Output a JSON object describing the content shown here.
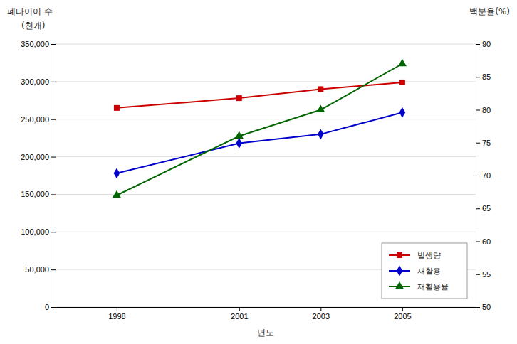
{
  "chart_data": {
    "type": "line",
    "x_label": "년도",
    "y_label": [
      "폐타이어 수",
      "(천개)"
    ],
    "y2_label": "백분율(%)",
    "x": [
      1998,
      2001,
      2003,
      2005
    ],
    "xlim": [
      1996.5,
      2006.8
    ],
    "xticks": [
      1998,
      2001,
      2003,
      2005
    ],
    "ylim": [
      0,
      350000
    ],
    "yticks": [
      0,
      {
        "value": 50000,
        "label": "50,000"
      },
      {
        "value": 100000,
        "label": "100,000"
      },
      {
        "value": 150000,
        "label": "150,000"
      },
      {
        "value": 200000,
        "label": "200,000"
      },
      {
        "value": 250000,
        "label": "250,000"
      },
      {
        "value": 300000,
        "label": "300,000"
      },
      {
        "value": 350000,
        "label": "350,000"
      }
    ],
    "y2lim": [
      50,
      90
    ],
    "y2ticks": [
      50,
      55,
      60,
      65,
      70,
      75,
      80,
      85,
      90
    ],
    "grid": true,
    "legend": "lower right",
    "series": [
      {
        "name": "발생량",
        "color": "#cc0000",
        "marker": "square",
        "values": [
          265000,
          278000,
          290000,
          299000
        ]
      },
      {
        "name": "재활용",
        "color": "#0000cc",
        "marker": "diamond",
        "values": [
          178000,
          218000,
          230000,
          259000
        ]
      },
      {
        "name": "재활용율",
        "color": "#006600",
        "marker": "triangle",
        "axis": "y2",
        "values": [
          67,
          76,
          80,
          87
        ]
      }
    ]
  }
}
